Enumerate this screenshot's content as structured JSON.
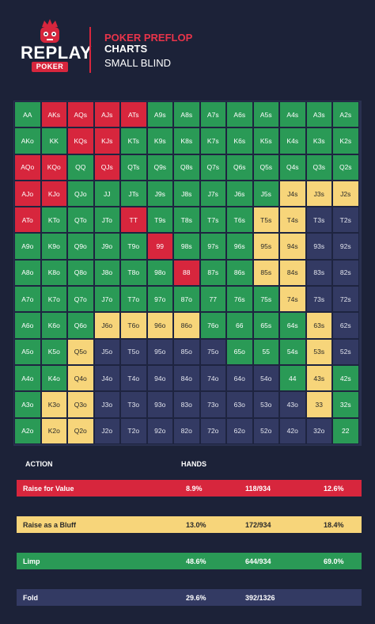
{
  "header": {
    "logo_word": "REPLAY",
    "logo_badge": "POKER",
    "title_line1": "POKER PREFLOP",
    "title_line2": "CHARTS",
    "subtitle": "SMALL BLIND"
  },
  "colors": {
    "background": "#1c2238",
    "raise": "#d7263d",
    "bluff": "#f7d57a",
    "limp": "#2a9a56",
    "fold": "#333a63"
  },
  "grid": [
    [
      [
        "AA",
        "limp"
      ],
      [
        "AKs",
        "raise"
      ],
      [
        "AQs",
        "raise"
      ],
      [
        "AJs",
        "raise"
      ],
      [
        "ATs",
        "raise"
      ],
      [
        "A9s",
        "limp"
      ],
      [
        "A8s",
        "limp"
      ],
      [
        "A7s",
        "limp"
      ],
      [
        "A6s",
        "limp"
      ],
      [
        "A5s",
        "limp"
      ],
      [
        "A4s",
        "limp"
      ],
      [
        "A3s",
        "limp"
      ],
      [
        "A2s",
        "limp"
      ]
    ],
    [
      [
        "AKo",
        "limp"
      ],
      [
        "KK",
        "limp"
      ],
      [
        "KQs",
        "raise"
      ],
      [
        "KJs",
        "raise"
      ],
      [
        "KTs",
        "limp"
      ],
      [
        "K9s",
        "limp"
      ],
      [
        "K8s",
        "limp"
      ],
      [
        "K7s",
        "limp"
      ],
      [
        "K6s",
        "limp"
      ],
      [
        "K5s",
        "limp"
      ],
      [
        "K4s",
        "limp"
      ],
      [
        "K3s",
        "limp"
      ],
      [
        "K2s",
        "limp"
      ]
    ],
    [
      [
        "AQo",
        "raise"
      ],
      [
        "KQo",
        "raise"
      ],
      [
        "QQ",
        "limp"
      ],
      [
        "QJs",
        "raise"
      ],
      [
        "QTs",
        "limp"
      ],
      [
        "Q9s",
        "limp"
      ],
      [
        "Q8s",
        "limp"
      ],
      [
        "Q7s",
        "limp"
      ],
      [
        "Q6s",
        "limp"
      ],
      [
        "Q5s",
        "limp"
      ],
      [
        "Q4s",
        "limp"
      ],
      [
        "Q3s",
        "limp"
      ],
      [
        "Q2s",
        "limp"
      ]
    ],
    [
      [
        "AJo",
        "raise"
      ],
      [
        "KJo",
        "raise"
      ],
      [
        "QJo",
        "limp"
      ],
      [
        "JJ",
        "limp"
      ],
      [
        "JTs",
        "limp"
      ],
      [
        "J9s",
        "limp"
      ],
      [
        "J8s",
        "limp"
      ],
      [
        "J7s",
        "limp"
      ],
      [
        "J6s",
        "limp"
      ],
      [
        "J5s",
        "limp"
      ],
      [
        "J4s",
        "bluff"
      ],
      [
        "J3s",
        "bluff"
      ],
      [
        "J2s",
        "bluff"
      ]
    ],
    [
      [
        "ATo",
        "raise"
      ],
      [
        "KTo",
        "limp"
      ],
      [
        "QTo",
        "limp"
      ],
      [
        "JTo",
        "limp"
      ],
      [
        "TT",
        "raise"
      ],
      [
        "T9s",
        "limp"
      ],
      [
        "T8s",
        "limp"
      ],
      [
        "T7s",
        "limp"
      ],
      [
        "T6s",
        "limp"
      ],
      [
        "T5s",
        "bluff"
      ],
      [
        "T4s",
        "bluff"
      ],
      [
        "T3s",
        "fold"
      ],
      [
        "T2s",
        "fold"
      ]
    ],
    [
      [
        "A9o",
        "limp"
      ],
      [
        "K9o",
        "limp"
      ],
      [
        "Q9o",
        "limp"
      ],
      [
        "J9o",
        "limp"
      ],
      [
        "T9o",
        "limp"
      ],
      [
        "99",
        "raise"
      ],
      [
        "98s",
        "limp"
      ],
      [
        "97s",
        "limp"
      ],
      [
        "96s",
        "limp"
      ],
      [
        "95s",
        "bluff"
      ],
      [
        "94s",
        "bluff"
      ],
      [
        "93s",
        "fold"
      ],
      [
        "92s",
        "fold"
      ]
    ],
    [
      [
        "A8o",
        "limp"
      ],
      [
        "K8o",
        "limp"
      ],
      [
        "Q8o",
        "limp"
      ],
      [
        "J8o",
        "limp"
      ],
      [
        "T8o",
        "limp"
      ],
      [
        "98o",
        "limp"
      ],
      [
        "88",
        "raise"
      ],
      [
        "87s",
        "limp"
      ],
      [
        "86s",
        "limp"
      ],
      [
        "85s",
        "bluff"
      ],
      [
        "84s",
        "bluff"
      ],
      [
        "83s",
        "fold"
      ],
      [
        "82s",
        "fold"
      ]
    ],
    [
      [
        "A7o",
        "limp"
      ],
      [
        "K7o",
        "limp"
      ],
      [
        "Q7o",
        "limp"
      ],
      [
        "J7o",
        "limp"
      ],
      [
        "T7o",
        "limp"
      ],
      [
        "97o",
        "limp"
      ],
      [
        "87o",
        "limp"
      ],
      [
        "77",
        "limp"
      ],
      [
        "76s",
        "limp"
      ],
      [
        "75s",
        "limp"
      ],
      [
        "74s",
        "bluff"
      ],
      [
        "73s",
        "fold"
      ],
      [
        "72s",
        "fold"
      ]
    ],
    [
      [
        "A6o",
        "limp"
      ],
      [
        "K6o",
        "limp"
      ],
      [
        "Q6o",
        "limp"
      ],
      [
        "J6o",
        "bluff"
      ],
      [
        "T6o",
        "bluff"
      ],
      [
        "96o",
        "bluff"
      ],
      [
        "86o",
        "bluff"
      ],
      [
        "76o",
        "limp"
      ],
      [
        "66",
        "limp"
      ],
      [
        "65s",
        "limp"
      ],
      [
        "64s",
        "limp"
      ],
      [
        "63s",
        "bluff"
      ],
      [
        "62s",
        "fold"
      ]
    ],
    [
      [
        "A5o",
        "limp"
      ],
      [
        "K5o",
        "limp"
      ],
      [
        "Q5o",
        "bluff"
      ],
      [
        "J5o",
        "fold"
      ],
      [
        "T5o",
        "fold"
      ],
      [
        "95o",
        "fold"
      ],
      [
        "85o",
        "fold"
      ],
      [
        "75o",
        "fold"
      ],
      [
        "65o",
        "limp"
      ],
      [
        "55",
        "limp"
      ],
      [
        "54s",
        "limp"
      ],
      [
        "53s",
        "bluff"
      ],
      [
        "52s",
        "fold"
      ]
    ],
    [
      [
        "A4o",
        "limp"
      ],
      [
        "K4o",
        "limp"
      ],
      [
        "Q4o",
        "bluff"
      ],
      [
        "J4o",
        "fold"
      ],
      [
        "T4o",
        "fold"
      ],
      [
        "94o",
        "fold"
      ],
      [
        "84o",
        "fold"
      ],
      [
        "74o",
        "fold"
      ],
      [
        "64o",
        "fold"
      ],
      [
        "54o",
        "fold"
      ],
      [
        "44",
        "limp"
      ],
      [
        "43s",
        "bluff"
      ],
      [
        "42s",
        "limp"
      ]
    ],
    [
      [
        "A3o",
        "limp"
      ],
      [
        "K3o",
        "bluff"
      ],
      [
        "Q3o",
        "bluff"
      ],
      [
        "J3o",
        "fold"
      ],
      [
        "T3o",
        "fold"
      ],
      [
        "93o",
        "fold"
      ],
      [
        "83o",
        "fold"
      ],
      [
        "73o",
        "fold"
      ],
      [
        "63o",
        "fold"
      ],
      [
        "53o",
        "fold"
      ],
      [
        "43o",
        "fold"
      ],
      [
        "33",
        "bluff"
      ],
      [
        "32s",
        "limp"
      ]
    ],
    [
      [
        "A2o",
        "limp"
      ],
      [
        "K2o",
        "bluff"
      ],
      [
        "Q2o",
        "bluff"
      ],
      [
        "J2o",
        "fold"
      ],
      [
        "T2o",
        "fold"
      ],
      [
        "92o",
        "fold"
      ],
      [
        "82o",
        "fold"
      ],
      [
        "72o",
        "fold"
      ],
      [
        "62o",
        "fold"
      ],
      [
        "52o",
        "fold"
      ],
      [
        "42o",
        "fold"
      ],
      [
        "32o",
        "fold"
      ],
      [
        "22",
        "limp"
      ]
    ]
  ],
  "table": {
    "action_header": "ACTION",
    "hands_header": "HANDS",
    "rows": [
      {
        "label": "Raise for Value",
        "pct": "8.9%",
        "count": "118/934",
        "pct2": "12.6%"
      },
      {
        "label": "Raise as a Bluff",
        "pct": "13.0%",
        "count": "172/934",
        "pct2": "18.4%"
      },
      {
        "label": "Limp",
        "pct": "48.6%",
        "count": "644/934",
        "pct2": "69.0%"
      },
      {
        "label": "Fold",
        "pct": "29.6%",
        "count": "392/1326",
        "pct2": ""
      }
    ]
  }
}
